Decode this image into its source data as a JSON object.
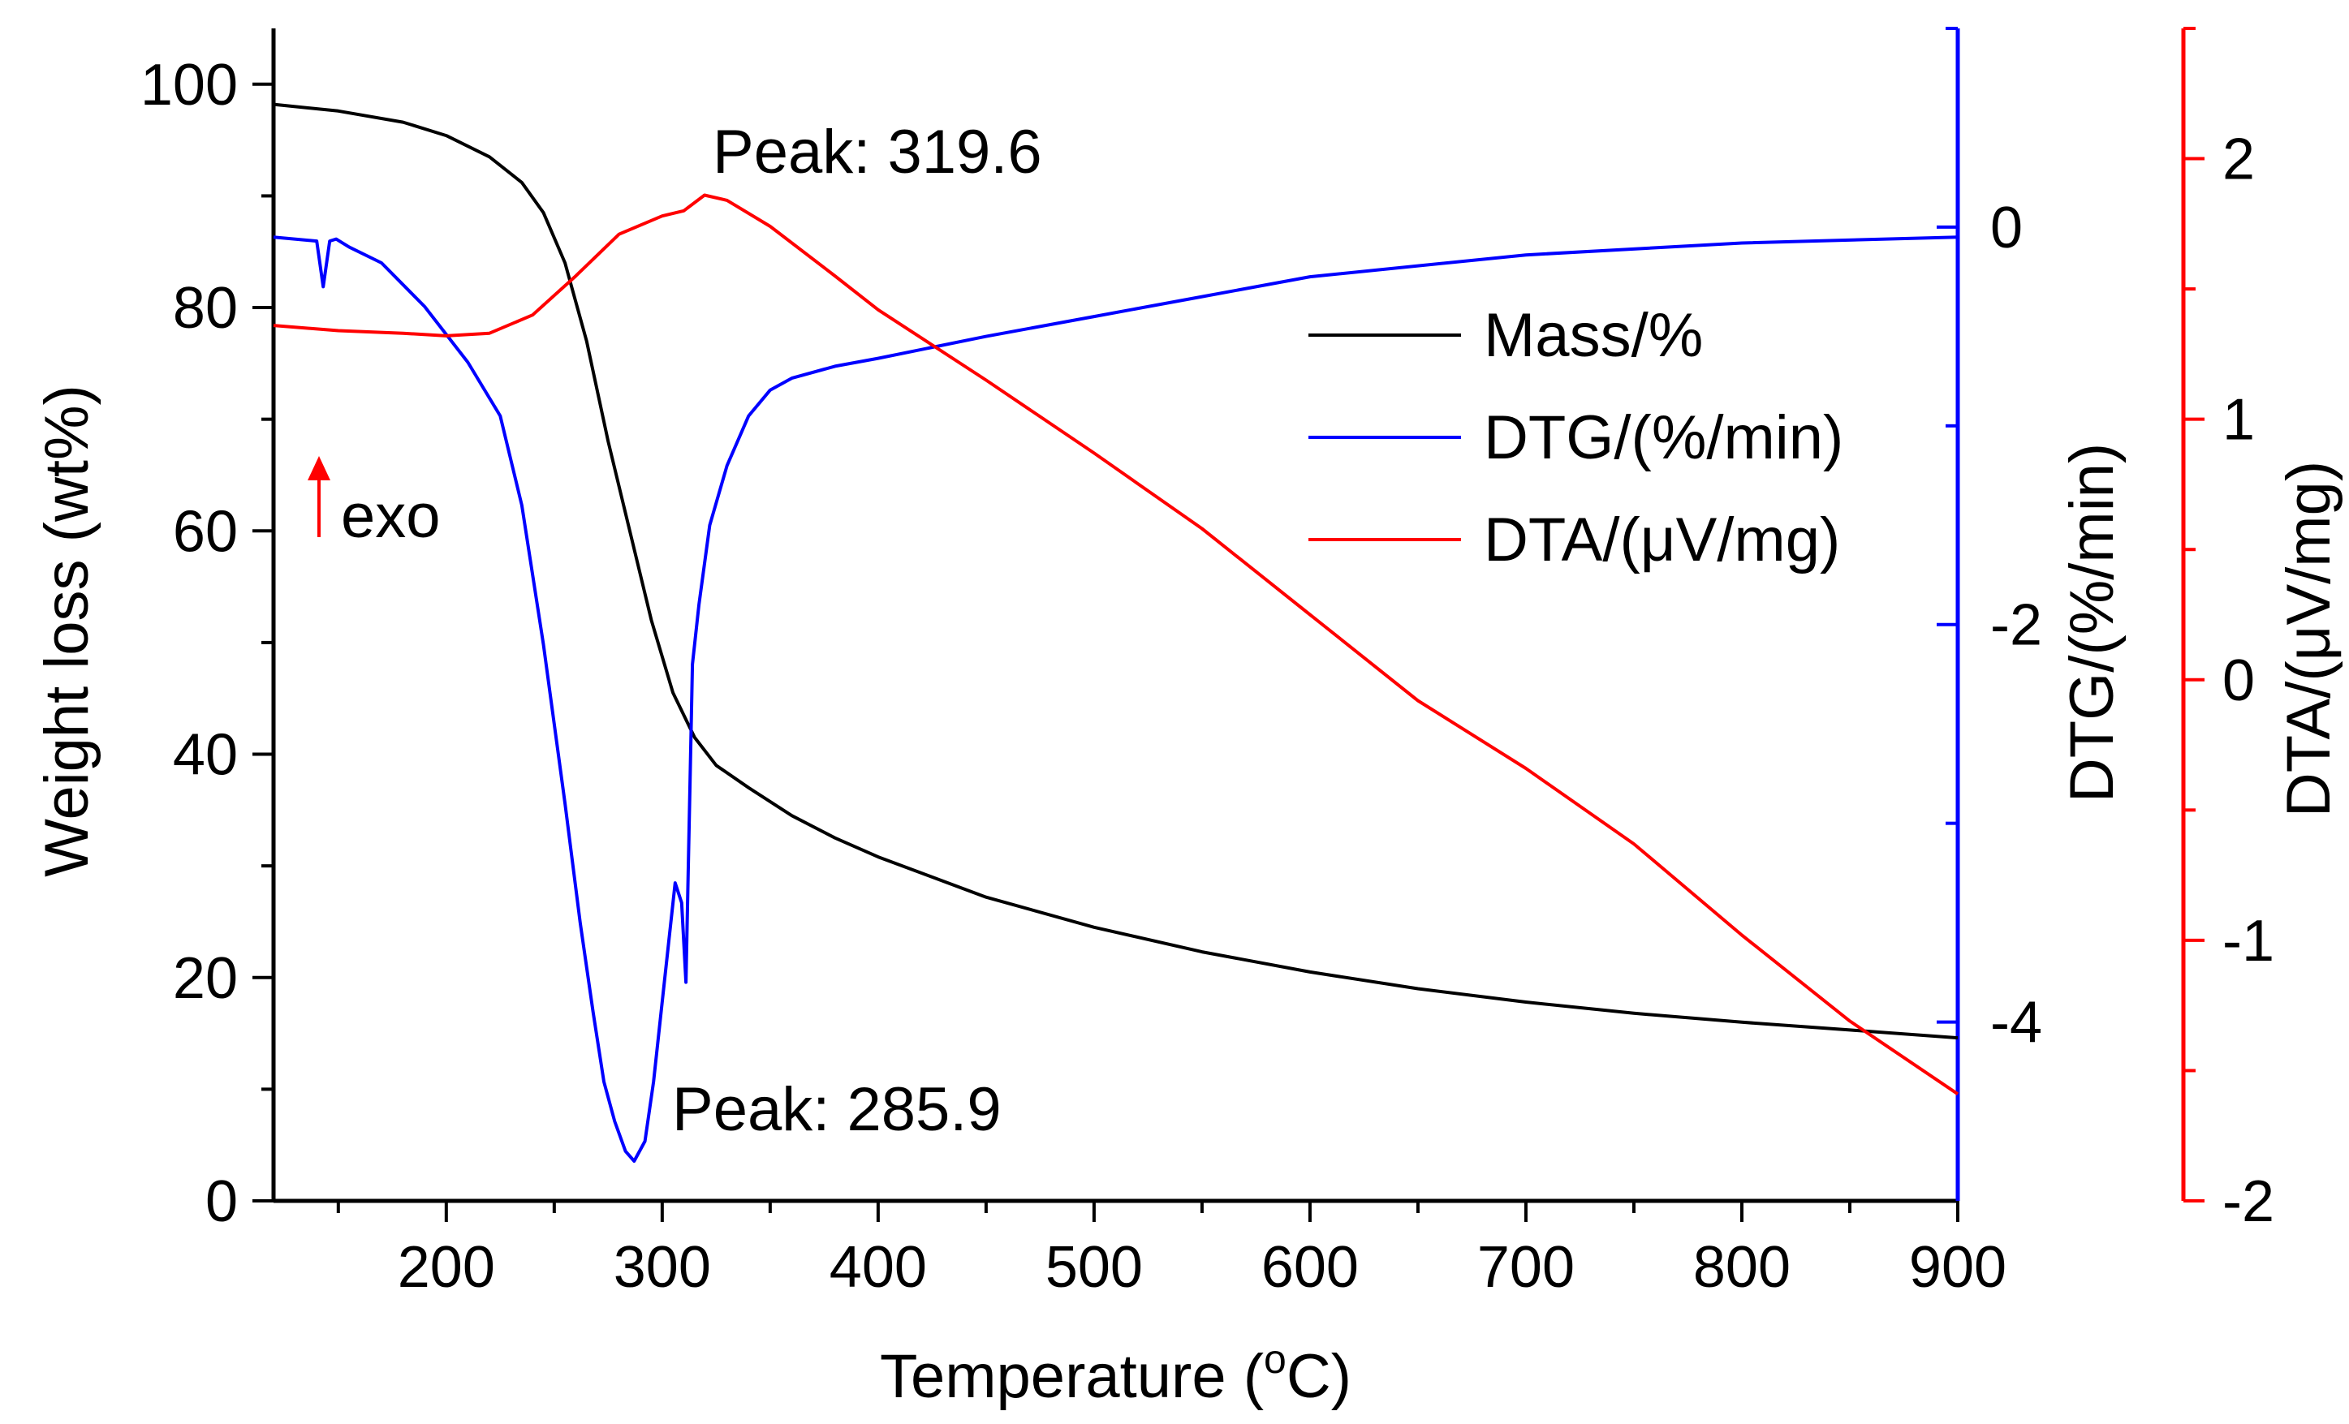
{
  "chart_data": {
    "type": "line",
    "title": "",
    "x_axis": {
      "label_main": "Temperature (",
      "label_unit_sup": "o",
      "label_unit_tail": "C)",
      "range": [
        120,
        900
      ],
      "ticks": [
        200,
        300,
        400,
        500,
        600,
        700,
        800,
        900
      ]
    },
    "y_axes": {
      "left": {
        "label": "Weight loss (wt%)",
        "range": [
          0,
          105
        ],
        "ticks": [
          0,
          20,
          40,
          60,
          80,
          100
        ],
        "color": "#000000"
      },
      "right_dtg": {
        "label": "DTG/(%/min)",
        "range": [
          -4.9,
          1.0
        ],
        "ticks": [
          -4,
          -2,
          0
        ],
        "color": "#0000ff"
      },
      "right_dta": {
        "label": "DTA/(μV/mg)",
        "range": [
          -2.0,
          2.5
        ],
        "ticks": [
          -2,
          -1,
          0,
          1,
          2
        ],
        "color": "#ff0000"
      }
    },
    "series": [
      {
        "name": "Mass/%",
        "axis": "left",
        "color": "#000000",
        "x": [
          120,
          150,
          180,
          200,
          220,
          235,
          245,
          255,
          265,
          275,
          285,
          295,
          305,
          315,
          325,
          340,
          360,
          380,
          400,
          450,
          500,
          550,
          600,
          650,
          700,
          750,
          800,
          850,
          900
        ],
        "y": [
          98.2,
          97.6,
          96.6,
          95.4,
          93.5,
          91.2,
          88.5,
          84.0,
          77.0,
          68.0,
          60.0,
          52.0,
          45.5,
          41.5,
          39.0,
          37.0,
          34.5,
          32.5,
          30.8,
          27.2,
          24.5,
          22.3,
          20.5,
          19.0,
          17.8,
          16.8,
          16.0,
          15.3,
          14.6
        ]
      },
      {
        "name": "DTG/(%/min)",
        "axis": "right_dtg",
        "color": "#0000ff",
        "x": [
          120,
          140,
          143,
          146,
          149,
          155,
          170,
          190,
          210,
          225,
          235,
          245,
          255,
          262,
          268,
          273,
          278,
          283,
          287,
          292,
          296,
          300,
          303,
          306,
          309,
          311,
          314,
          317,
          322,
          330,
          340,
          350,
          360,
          380,
          400,
          450,
          500,
          550,
          600,
          700,
          800,
          900
        ],
        "y": [
          -0.05,
          -0.07,
          -0.3,
          -0.07,
          -0.06,
          -0.1,
          -0.18,
          -0.4,
          -0.68,
          -0.95,
          -1.4,
          -2.1,
          -2.9,
          -3.5,
          -3.95,
          -4.3,
          -4.5,
          -4.65,
          -4.7,
          -4.6,
          -4.3,
          -3.9,
          -3.6,
          -3.3,
          -3.4,
          -3.8,
          -2.2,
          -1.9,
          -1.5,
          -1.2,
          -0.95,
          -0.82,
          -0.76,
          -0.7,
          -0.66,
          -0.55,
          -0.45,
          -0.35,
          -0.25,
          -0.14,
          -0.08,
          -0.05
        ]
      },
      {
        "name": "DTA/(μV/mg)",
        "axis": "right_dta",
        "color": "#ff0000",
        "x": [
          120,
          150,
          180,
          200,
          220,
          240,
          260,
          280,
          300,
          310,
          319.6,
          330,
          350,
          380,
          400,
          450,
          500,
          550,
          600,
          650,
          700,
          750,
          800,
          850,
          900
        ],
        "y": [
          1.36,
          1.34,
          1.33,
          1.32,
          1.33,
          1.4,
          1.55,
          1.71,
          1.78,
          1.8,
          1.86,
          1.84,
          1.74,
          1.55,
          1.42,
          1.15,
          0.87,
          0.58,
          0.25,
          -0.08,
          -0.34,
          -0.63,
          -0.98,
          -1.31,
          -1.59
        ]
      }
    ],
    "legend": {
      "placement": "upper-right",
      "entries": [
        "Mass/%",
        "DTG/(%/min)",
        "DTA/(μV/mg)"
      ]
    },
    "annotations": {
      "peak_dta": "Peak: 319.6",
      "peak_dtg": "Peak: 285.9",
      "exo": "exo",
      "exo_color": "#ff0000"
    }
  }
}
